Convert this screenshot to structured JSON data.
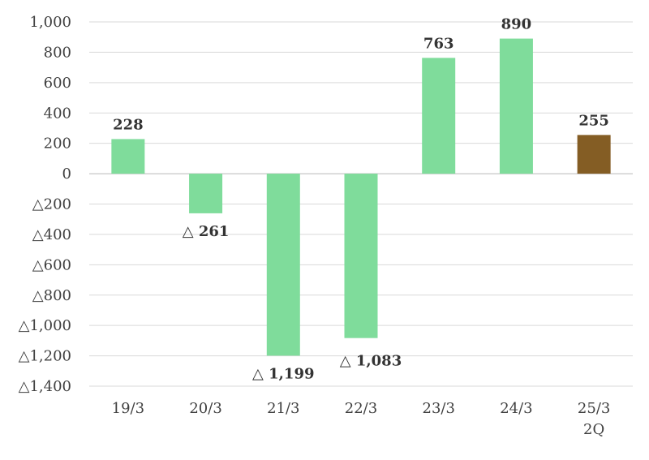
{
  "chart_data": {
    "type": "bar",
    "title": "",
    "xlabel": "",
    "ylabel": "",
    "categories": [
      "19/3",
      "20/3",
      "21/3",
      "22/3",
      "23/3",
      "24/3",
      "25/3 2Q"
    ],
    "values": [
      228,
      -261,
      -1199,
      -1083,
      763,
      890,
      255
    ],
    "data_labels": [
      "228",
      "△ 261",
      "△ 1,199",
      "△ 1,083",
      "763",
      "890",
      "255"
    ],
    "y_ticks": [
      1000,
      800,
      600,
      400,
      200,
      0,
      -200,
      -400,
      -600,
      -800,
      -1000,
      -1200,
      -1400
    ],
    "y_tick_labels": [
      "1,000",
      "800",
      "600",
      "400",
      "200",
      "0",
      "△200",
      "△400",
      "△600",
      "△800",
      "△1,000",
      "△1,200",
      "△1,400"
    ],
    "ylim": [
      -1400,
      1000
    ],
    "grid": true,
    "legend": "none",
    "bar_colors": [
      "#7fdc9b",
      "#7fdc9b",
      "#7fdc9b",
      "#7fdc9b",
      "#7fdc9b",
      "#7fdc9b",
      "#845d24"
    ]
  }
}
